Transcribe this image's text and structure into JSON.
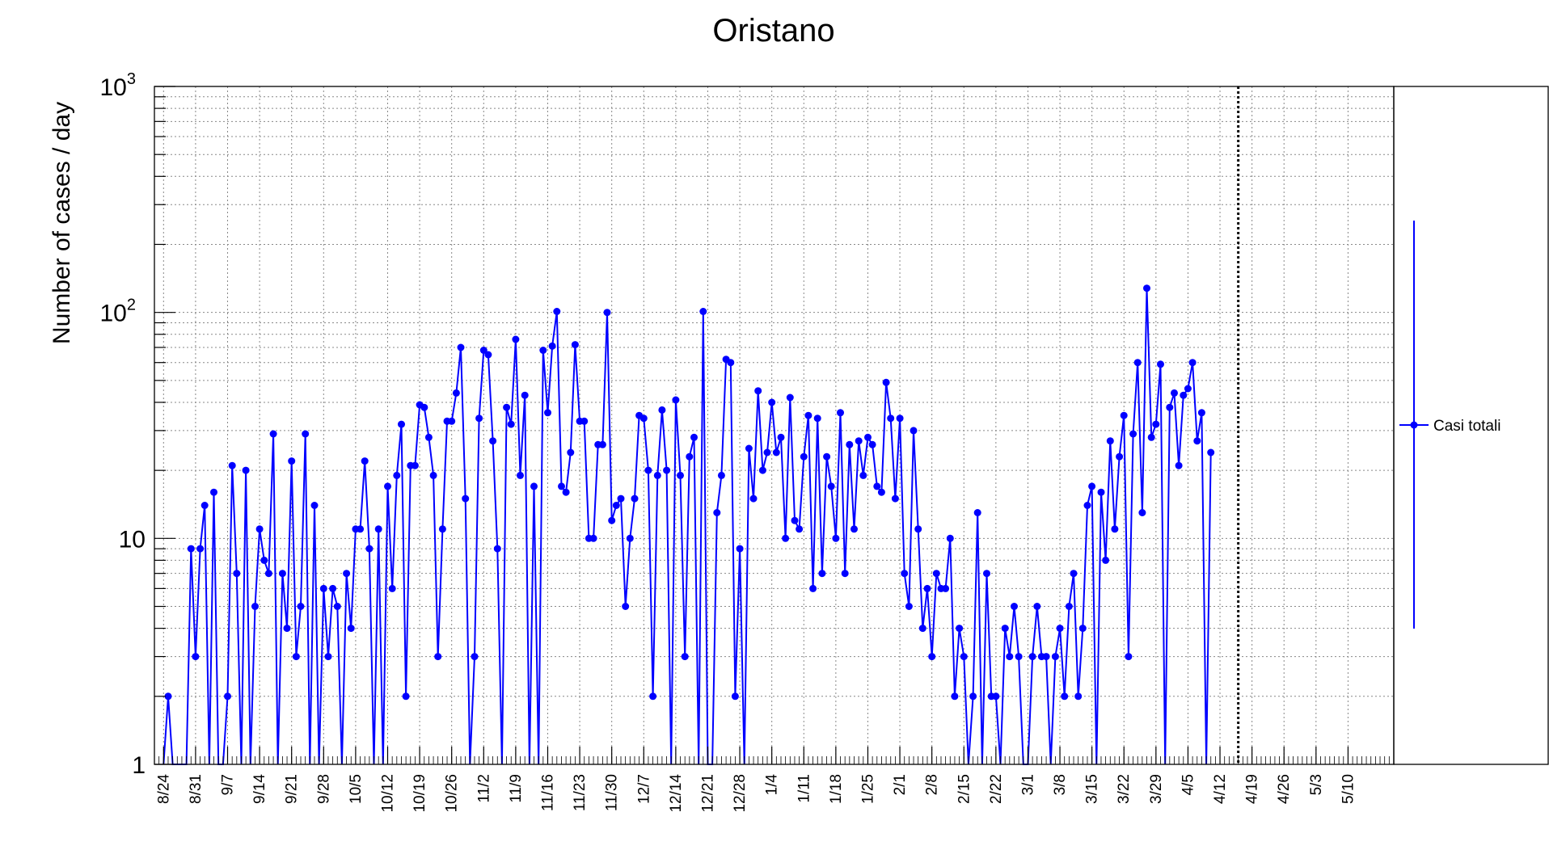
{
  "chart_data": {
    "type": "line",
    "title": "Oristano",
    "xlabel": "",
    "ylabel": "Number of cases / day",
    "yscale": "log",
    "ylim": [
      1,
      1000
    ],
    "y_ticks": [
      {
        "value": 1,
        "label": "1"
      },
      {
        "value": 10,
        "label": "10"
      },
      {
        "value": 100,
        "label": "10",
        "exp": "2"
      },
      {
        "value": 1000,
        "label": "10",
        "exp": "3"
      }
    ],
    "x_start": "2020-08-22",
    "x_end": "2021-05-20",
    "x_ticks": [
      {
        "date": "2020-08-24",
        "label": "8/24"
      },
      {
        "date": "2020-08-31",
        "label": "8/31"
      },
      {
        "date": "2020-09-07",
        "label": "9/7"
      },
      {
        "date": "2020-09-14",
        "label": "9/14"
      },
      {
        "date": "2020-09-21",
        "label": "9/21"
      },
      {
        "date": "2020-09-28",
        "label": "9/28"
      },
      {
        "date": "2020-10-05",
        "label": "10/5"
      },
      {
        "date": "2020-10-12",
        "label": "10/12"
      },
      {
        "date": "2020-10-19",
        "label": "10/19"
      },
      {
        "date": "2020-10-26",
        "label": "10/26"
      },
      {
        "date": "2020-11-02",
        "label": "11/2"
      },
      {
        "date": "2020-11-09",
        "label": "11/9"
      },
      {
        "date": "2020-11-16",
        "label": "11/16"
      },
      {
        "date": "2020-11-23",
        "label": "11/23"
      },
      {
        "date": "2020-11-30",
        "label": "11/30"
      },
      {
        "date": "2020-12-07",
        "label": "12/7"
      },
      {
        "date": "2020-12-14",
        "label": "12/14"
      },
      {
        "date": "2020-12-21",
        "label": "12/21"
      },
      {
        "date": "2020-12-28",
        "label": "12/28"
      },
      {
        "date": "2021-01-04",
        "label": "1/4"
      },
      {
        "date": "2021-01-11",
        "label": "1/11"
      },
      {
        "date": "2021-01-18",
        "label": "1/18"
      },
      {
        "date": "2021-01-25",
        "label": "1/25"
      },
      {
        "date": "2021-02-01",
        "label": "2/1"
      },
      {
        "date": "2021-02-08",
        "label": "2/8"
      },
      {
        "date": "2021-02-15",
        "label": "2/15"
      },
      {
        "date": "2021-02-22",
        "label": "2/22"
      },
      {
        "date": "2021-03-01",
        "label": "3/1"
      },
      {
        "date": "2021-03-08",
        "label": "3/8"
      },
      {
        "date": "2021-03-15",
        "label": "3/15"
      },
      {
        "date": "2021-03-22",
        "label": "3/22"
      },
      {
        "date": "2021-03-29",
        "label": "3/29"
      },
      {
        "date": "2021-04-05",
        "label": "4/5"
      },
      {
        "date": "2021-04-12",
        "label": "4/12"
      },
      {
        "date": "2021-04-19",
        "label": "4/19"
      },
      {
        "date": "2021-04-26",
        "label": "4/26"
      },
      {
        "date": "2021-05-03",
        "label": "5/3"
      },
      {
        "date": "2021-05-10",
        "label": "5/10"
      }
    ],
    "vline_date": "2021-04-16",
    "grid": true,
    "legend": "right",
    "series": [
      {
        "name": "Casi totali",
        "color": "#0000ff",
        "start_date": "2020-08-24",
        "values": [
          1,
          2,
          1,
          1,
          1,
          1,
          9,
          3,
          9,
          14,
          1,
          16,
          1,
          1,
          2,
          21,
          7,
          1,
          20,
          1,
          5,
          11,
          8,
          7,
          29,
          1,
          7,
          4,
          22,
          3,
          5,
          29,
          1,
          14,
          1,
          6,
          3,
          6,
          5,
          1,
          7,
          4,
          11,
          11,
          22,
          9,
          1,
          11,
          1,
          17,
          6,
          19,
          32,
          2,
          21,
          21,
          39,
          38,
          28,
          19,
          3,
          11,
          33,
          33,
          44,
          70,
          15,
          1,
          3,
          34,
          68,
          65,
          27,
          9,
          1,
          38,
          32,
          76,
          19,
          43,
          1,
          17,
          1,
          68,
          36,
          71,
          101,
          17,
          16,
          24,
          72,
          33,
          33,
          10,
          10,
          26,
          26,
          100,
          12,
          14,
          15,
          5,
          10,
          15,
          35,
          34,
          20,
          2,
          19,
          37,
          20,
          1,
          41,
          19,
          3,
          23,
          28,
          1,
          101,
          1,
          1,
          13,
          19,
          62,
          60,
          2,
          9,
          1,
          25,
          15,
          45,
          20,
          24,
          40,
          24,
          28,
          10,
          42,
          12,
          11,
          23,
          35,
          6,
          34,
          7,
          23,
          17,
          10,
          36,
          7,
          26,
          11,
          27,
          19,
          28,
          26,
          17,
          16,
          49,
          34,
          15,
          34,
          7,
          5,
          30,
          11,
          4,
          6,
          3,
          7,
          6,
          6,
          10,
          2,
          4,
          3,
          1,
          2,
          13,
          1,
          7,
          2,
          2,
          1,
          4,
          3,
          5,
          3,
          1,
          1,
          3,
          5,
          3,
          3,
          1,
          3,
          4,
          2,
          5,
          7,
          2,
          4,
          14,
          17,
          1,
          16,
          8,
          27,
          11,
          23,
          35,
          3,
          29,
          60,
          13,
          128,
          28,
          32,
          59,
          1,
          38,
          44,
          21,
          43,
          46,
          60,
          27,
          36,
          1,
          24
        ]
      }
    ]
  }
}
